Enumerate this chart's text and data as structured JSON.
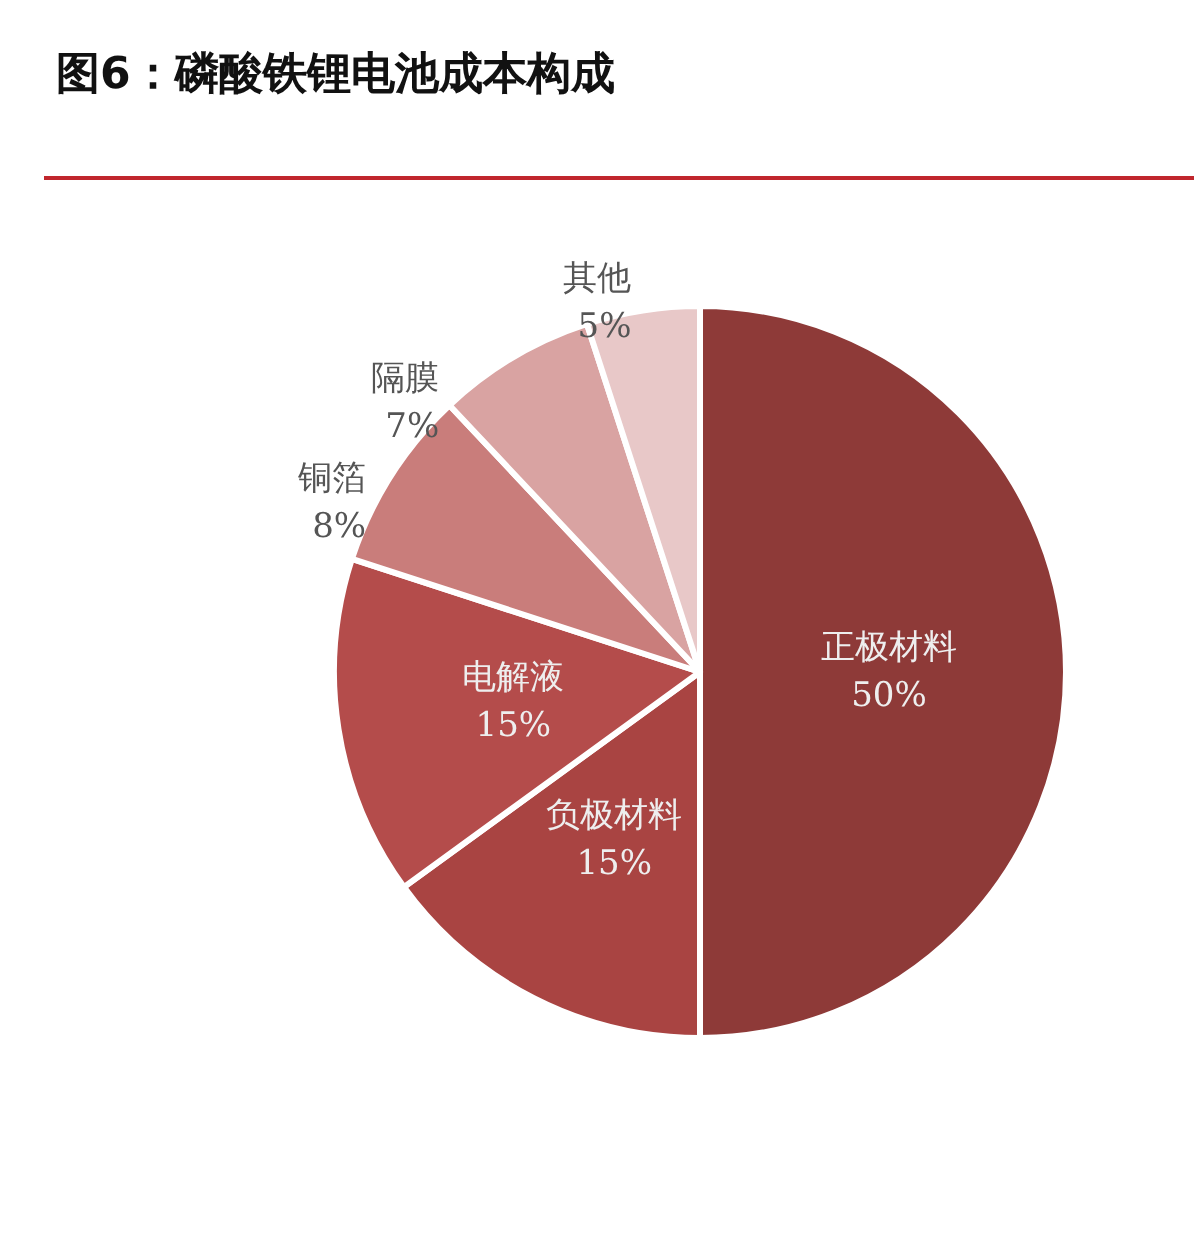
{
  "chart_data": {
    "type": "pie",
    "title": "图6：磷酸铁锂电池成本构成",
    "categories": [
      "正极材料",
      "负极材料",
      "电解液",
      "铜箔",
      "隔膜",
      "其他"
    ],
    "values": [
      50,
      15,
      15,
      8,
      7,
      5
    ],
    "colors": [
      "#8e3a38",
      "#a94442",
      "#b44c4b",
      "#c97d7b",
      "#d9a3a2",
      "#e8c8c8"
    ],
    "value_labels": [
      "50%",
      "15%",
      "15%",
      "8%",
      "7%",
      "5%"
    ],
    "legend": false
  }
}
